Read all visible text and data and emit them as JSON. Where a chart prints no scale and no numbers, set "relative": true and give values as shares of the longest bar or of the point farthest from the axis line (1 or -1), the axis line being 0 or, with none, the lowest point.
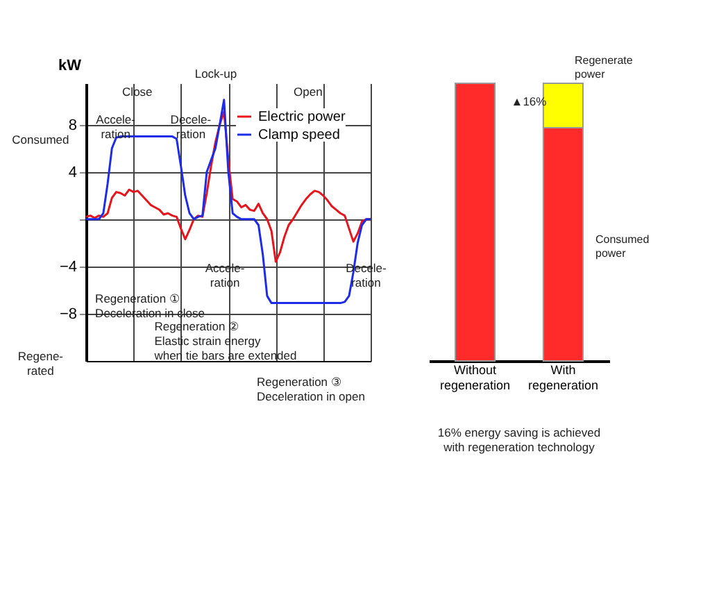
{
  "chart_data": [
    {
      "type": "line",
      "ylabel": "kW",
      "categories": [
        null,
        null,
        null,
        null,
        null,
        null,
        null,
        null,
        null,
        null,
        null,
        null,
        null,
        null,
        null,
        null,
        null,
        null,
        null,
        null,
        null,
        null,
        null,
        null,
        null,
        null,
        null,
        null,
        null,
        null,
        null,
        null,
        null,
        null,
        null,
        null,
        null,
        null,
        null,
        null,
        null,
        null,
        null,
        null,
        null,
        null,
        null,
        null,
        null,
        null,
        null,
        null,
        null,
        null,
        null,
        null,
        null,
        null,
        null,
        null,
        null,
        null,
        null,
        null,
        null,
        null,
        null
      ],
      "series": [
        {
          "name": "Electric power",
          "color": "#e8141c",
          "values": [
            0.2,
            0.3,
            0.1,
            0.3,
            0.2,
            0.5,
            1.8,
            2.3,
            2.2,
            2.0,
            2.5,
            2.3,
            2.4,
            2.0,
            1.6,
            1.2,
            1.0,
            0.8,
            0.4,
            0.5,
            0.3,
            0.2,
            -0.8,
            -1.7,
            -0.9,
            0.0,
            0.3,
            0.2,
            2.2,
            4.5,
            6.5,
            8.0,
            9.1,
            5.0,
            1.7,
            1.5,
            1.0,
            1.2,
            0.8,
            0.7,
            1.3,
            0.5,
            0.0,
            -1.0,
            -3.6,
            -2.8,
            -1.5,
            -0.5,
            0.0,
            0.6,
            1.2,
            1.7,
            2.1,
            2.4,
            2.3,
            2.0,
            1.6,
            1.1,
            0.8,
            0.5,
            0.3,
            -0.8,
            -1.9,
            -1.2,
            -0.2,
            0.0,
            0.0
          ]
        },
        {
          "name": "Clamp speed",
          "color": "#1c2ce8",
          "values": [
            0,
            0,
            0,
            0,
            0.5,
            3.0,
            6.0,
            6.9,
            7.0,
            7.0,
            7.0,
            7.0,
            7.0,
            7.0,
            7.0,
            7.0,
            7.0,
            7.0,
            7.0,
            7.0,
            7.0,
            6.8,
            4.5,
            2.0,
            0.5,
            0,
            0.2,
            0.3,
            4.0,
            5.0,
            6.0,
            8.0,
            10.1,
            4.0,
            0.5,
            0.2,
            0,
            0,
            0,
            0,
            -0.5,
            -3.0,
            -6.5,
            -7.1,
            -7.1,
            -7.1,
            -7.1,
            -7.1,
            -7.1,
            -7.1,
            -7.1,
            -7.1,
            -7.1,
            -7.1,
            -7.1,
            -7.1,
            -7.1,
            -7.1,
            -7.1,
            -7.1,
            -7.0,
            -6.5,
            -4.5,
            -2.0,
            -0.5,
            0,
            0
          ]
        }
      ],
      "ylim": [
        -12,
        11.5
      ],
      "yticks": [
        -8,
        -4,
        {
          "value": 0,
          "label": null
        },
        4,
        8
      ],
      "grid": true,
      "legend": "top right",
      "annotations": [
        "Lock-up",
        "Close",
        "Open",
        "Accele-\nration",
        "Decele-\nration",
        "Consumed",
        "Regene-\nrated",
        "Accele-\nration",
        "Decele-\nration",
        "Regeneration ①\nDeceleration in close",
        "Regeneration ②\nElastic strain energy\nwhen tie bars are extended",
        "Regeneration ③\nDeceleration in open"
      ]
    },
    {
      "type": "bar",
      "relative": true,
      "stacked": true,
      "categories": [
        "Without\nregeneration",
        "With\nregeneration"
      ],
      "series": [
        {
          "name": "Consumed power",
          "color": "#ff2a2a",
          "values": [
            1,
            0.84
          ]
        },
        {
          "name": "Regenerate power",
          "color": "#ffff00",
          "values": [
            0,
            0.16
          ]
        }
      ],
      "annotations": [
        "▲16%",
        "16% energy saving is achieved\nwith regeneration technology"
      ]
    }
  ]
}
